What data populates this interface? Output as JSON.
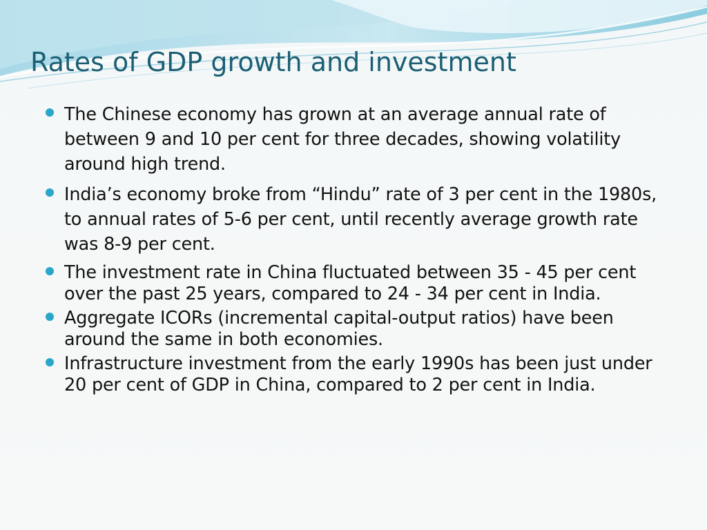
{
  "slide": {
    "title": "Rates of GDP growth and investment",
    "accent_color": "#1b5f74",
    "bullet_color": "#2aa6c9",
    "bullets": [
      "The Chinese economy has grown at an average annual rate of between 9 and 10 per cent for three decades, showing volatility around high trend.",
      "India’s economy broke from “Hindu” rate of 3 per cent in the 1980s, to annual rates of 5-6 per cent, until recently average growth rate was 8-9 per cent.",
      "The investment rate in China fluctuated between 35 - 45 per cent over the past 25 years, compared to 24 - 34 per cent in India.",
      "Aggregate ICORs (incremental capital-output ratios) have been around the same in both economies.",
      "Infrastructure investment from the early 1990s has been just under 20 per cent of GDP in China, compared to 2 per cent in India."
    ]
  }
}
